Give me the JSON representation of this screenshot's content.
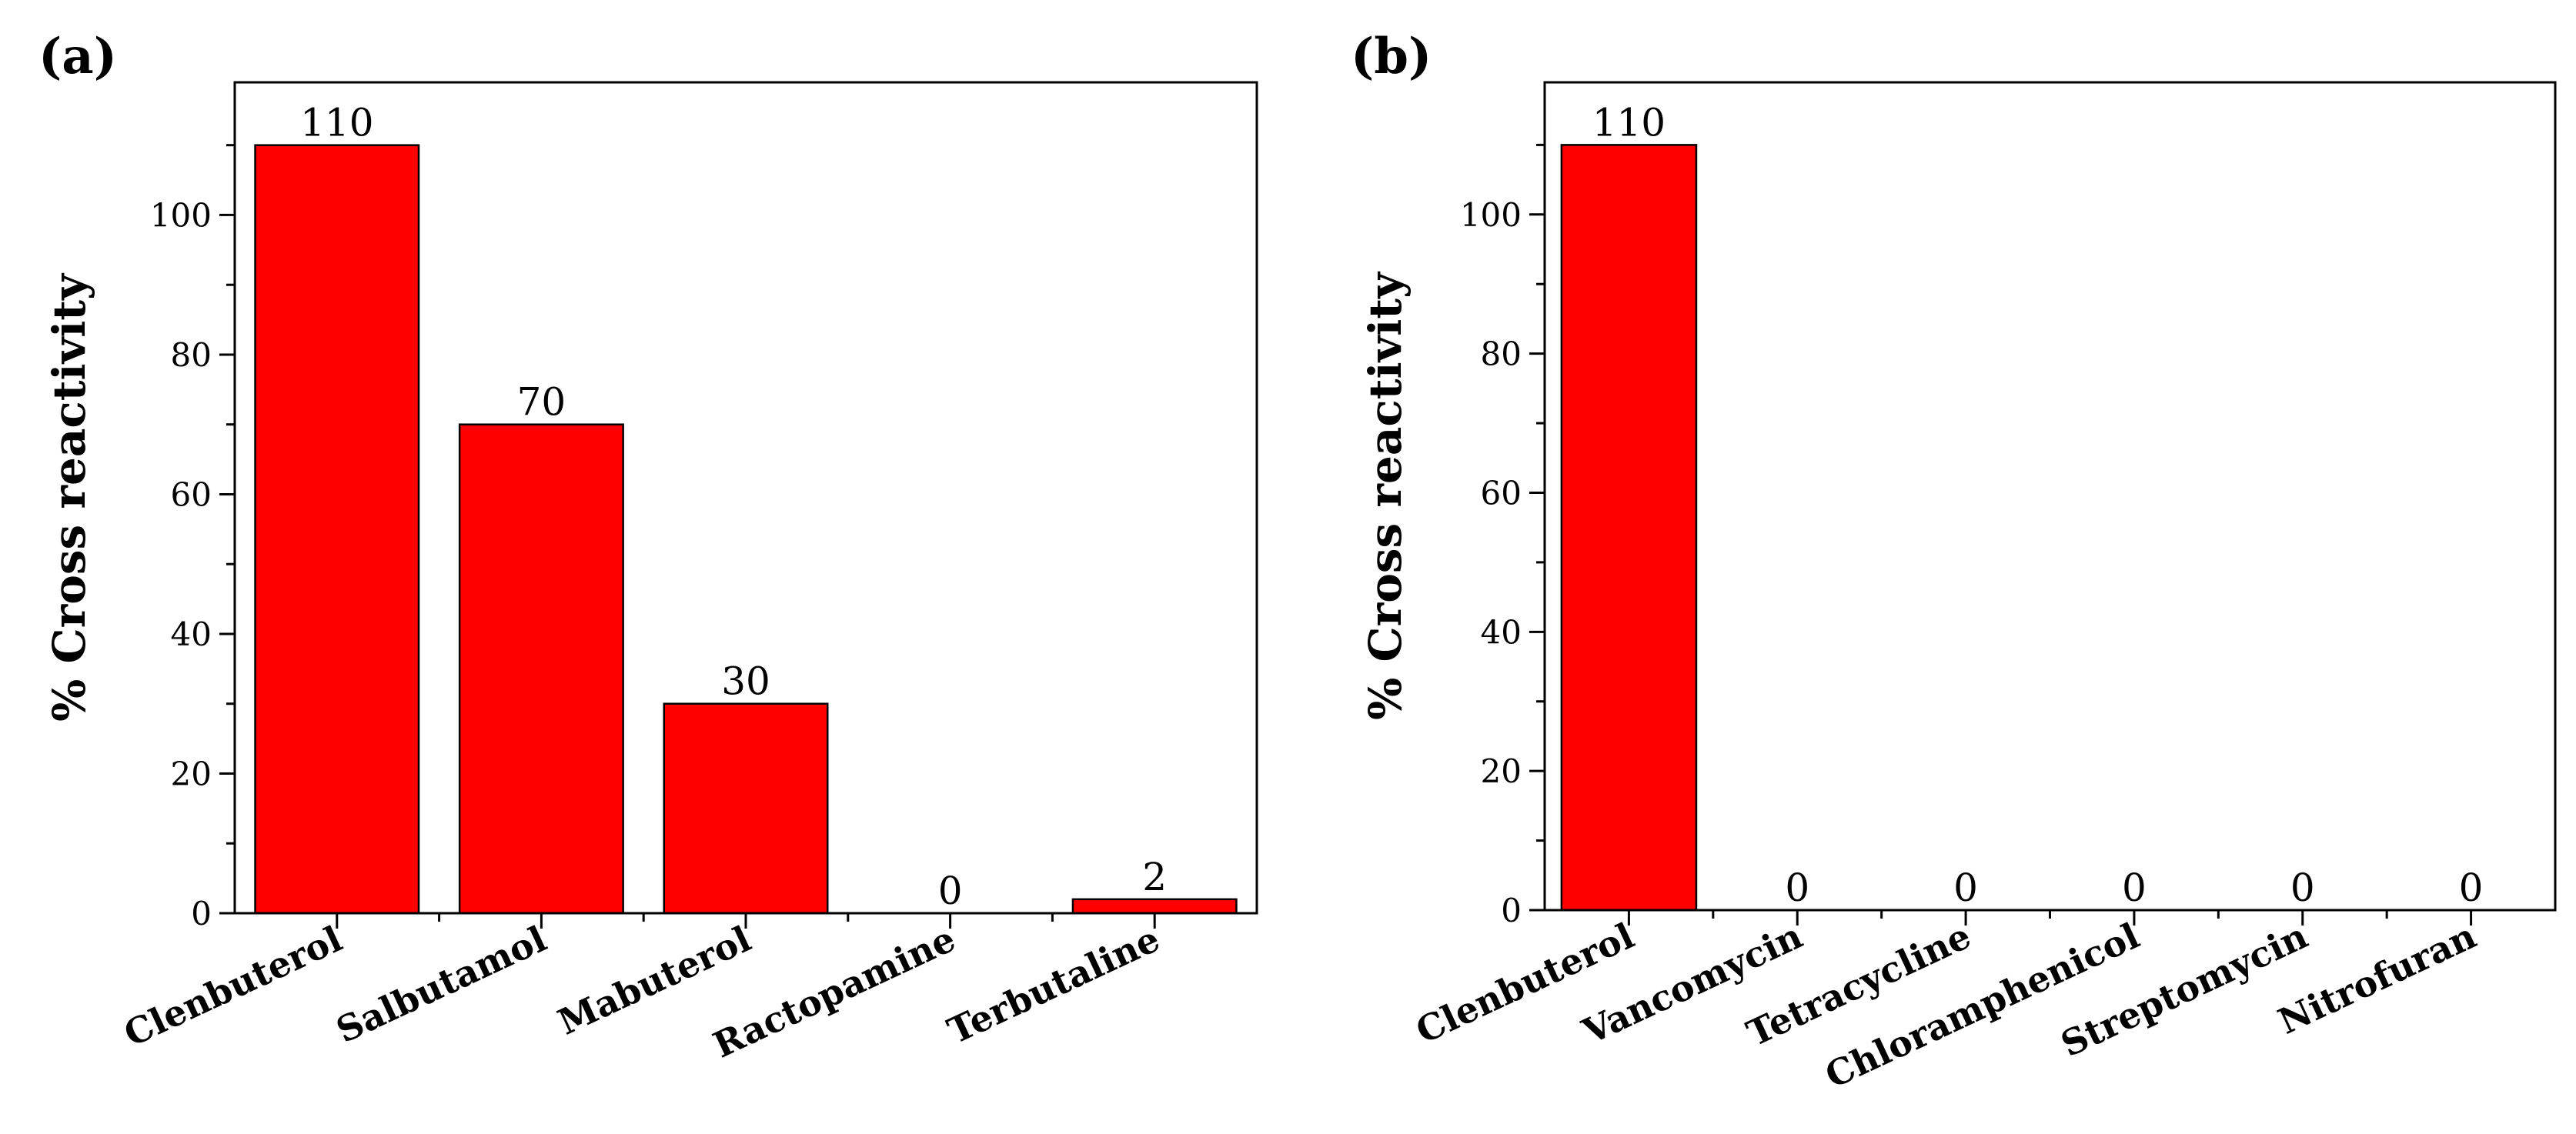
{
  "chart_data": [
    {
      "panel": "(a)",
      "type": "bar",
      "ylabel": "% Cross reactivity",
      "xlabel": "",
      "ylim": [
        0,
        119
      ],
      "yticks": [
        0,
        20,
        40,
        60,
        80,
        100
      ],
      "categories": [
        "Clenbuterol",
        "Salbutamol",
        "Mabuterol",
        "Ractopamine",
        "Terbutaline"
      ],
      "values": [
        110,
        70,
        30,
        0,
        2
      ],
      "data_labels": [
        "110",
        "70",
        "30",
        "0",
        "2"
      ],
      "bar_color": "#ff0000"
    },
    {
      "panel": "(b)",
      "type": "bar",
      "ylabel": "% Cross reactivity",
      "xlabel": "",
      "ylim": [
        0,
        119
      ],
      "yticks": [
        0,
        20,
        40,
        60,
        80,
        100
      ],
      "categories": [
        "Clenbuterol",
        "Vancomycin",
        "Tetracycline",
        "Chloramphenicol",
        "Streptomycin",
        "Nitrofuran"
      ],
      "values": [
        110,
        0,
        0,
        0,
        0,
        0
      ],
      "data_labels": [
        "110",
        "0",
        "0",
        "0",
        "0",
        "0"
      ],
      "bar_color": "#ff0000"
    }
  ]
}
